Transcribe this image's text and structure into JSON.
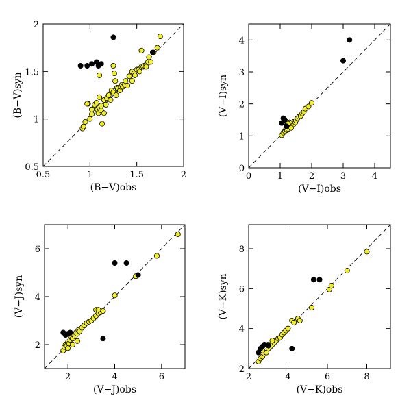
{
  "chart_data": [
    {
      "type": "scatter",
      "xlabel": "(B−V)obs",
      "ylabel": "(B−V)syn",
      "xlim": [
        0.5,
        2
      ],
      "ylim": [
        0.5,
        2
      ],
      "xticks": [
        0.5,
        1,
        1.5,
        2
      ],
      "yticks": [
        0.5,
        1,
        1.5,
        2
      ],
      "xticklabels": [
        "0.5",
        "1",
        "1.5",
        "2"
      ],
      "yticklabels": [
        "0.5",
        "1",
        "1.5",
        "2"
      ],
      "identity_line": true,
      "series": [
        {
          "color": "#f2ef2a",
          "x": [
            0.92,
            0.93,
            0.95,
            0.98,
            1.0,
            1.02,
            1.05,
            1.07,
            1.08,
            1.09,
            1.1,
            1.1,
            1.12,
            1.13,
            1.15,
            1.17,
            1.18,
            1.2,
            1.22,
            1.23,
            1.25,
            1.26,
            1.28,
            1.29,
            1.3,
            1.32,
            1.33,
            1.34,
            1.35,
            1.37,
            1.38,
            1.4,
            1.42,
            1.45,
            1.47,
            1.48,
            1.5,
            1.52,
            1.53,
            1.55,
            1.57,
            1.58,
            1.6,
            1.61,
            1.62,
            1.63,
            1.65,
            1.68,
            1.72,
            1.75,
            0.97,
            1.02,
            1.12,
            1.15,
            1.25,
            1.27,
            1.1,
            1.45,
            1.55,
            1.6
          ],
          "y": [
            0.9,
            0.92,
            0.97,
            1.16,
            1.0,
            1.05,
            1.15,
            1.17,
            1.1,
            1.06,
            1.12,
            1.46,
            1.09,
            0.95,
            1.2,
            1.15,
            1.22,
            1.25,
            1.2,
            1.3,
            1.28,
            1.48,
            1.25,
            1.33,
            1.32,
            1.3,
            1.34,
            1.36,
            1.34,
            1.36,
            1.4,
            1.35,
            1.45,
            1.5,
            1.48,
            1.46,
            1.52,
            1.52,
            1.5,
            1.55,
            1.55,
            1.56,
            1.57,
            1.58,
            1.6,
            1.65,
            1.6,
            1.7,
            1.75,
            1.87,
            1.16,
            1.1,
            1.14,
            1.06,
            1.56,
            1.4,
            1.23,
            1.4,
            1.72,
            1.55
          ]
        },
        {
          "color": "#000000",
          "x": [
            0.9,
            0.97,
            1.02,
            1.07,
            1.09,
            1.12,
            1.25,
            1.67
          ],
          "y": [
            1.56,
            1.56,
            1.58,
            1.6,
            1.56,
            1.58,
            1.86,
            1.7
          ]
        }
      ]
    },
    {
      "type": "scatter",
      "xlabel": "(V−I)obs",
      "ylabel": "(V−I)syn",
      "xlim": [
        0,
        4.5
      ],
      "ylim": [
        0,
        4.5
      ],
      "xticks": [
        0,
        1,
        2,
        3,
        4
      ],
      "yticks": [
        0,
        1,
        2,
        3,
        4
      ],
      "xticklabels": [
        "0",
        "1",
        "2",
        "3",
        "4"
      ],
      "yticklabels": [
        "0",
        "1",
        "2",
        "3",
        "4"
      ],
      "identity_line": true,
      "series": [
        {
          "color": "#f2ef2a",
          "x": [
            1.05,
            1.1,
            1.15,
            1.18,
            1.2,
            1.22,
            1.25,
            1.28,
            1.3,
            1.32,
            1.35,
            1.38,
            1.4,
            1.42,
            1.45,
            1.48,
            1.5,
            1.55,
            1.6,
            1.65,
            1.7,
            1.75,
            1.8,
            1.9,
            2.0,
            1.2,
            1.3,
            1.35,
            1.25
          ],
          "y": [
            1.02,
            1.1,
            1.15,
            1.2,
            1.25,
            1.18,
            1.22,
            1.3,
            1.28,
            1.35,
            1.32,
            1.38,
            1.4,
            1.36,
            1.45,
            1.42,
            1.48,
            1.55,
            1.6,
            1.62,
            1.7,
            1.75,
            1.85,
            1.92,
            2.03,
            1.32,
            1.42,
            1.25,
            1.38
          ]
        },
        {
          "color": "#000000",
          "x": [
            1.05,
            1.1,
            1.15,
            1.2,
            3.0,
            3.2
          ],
          "y": [
            1.4,
            1.55,
            1.5,
            1.3,
            3.35,
            4.0
          ]
        }
      ]
    },
    {
      "type": "scatter",
      "xlabel": "(V−J)obs",
      "ylabel": "(V−J)syn",
      "xlim": [
        1,
        7
      ],
      "ylim": [
        1,
        7
      ],
      "xticks": [
        2,
        4,
        6
      ],
      "yticks": [
        2,
        4,
        6
      ],
      "xticklabels": [
        "2",
        "4",
        "6"
      ],
      "yticklabels": [
        "2",
        "4",
        "6"
      ],
      "identity_line": true,
      "series": [
        {
          "color": "#f2ef2a",
          "x": [
            1.8,
            1.85,
            1.9,
            1.95,
            2.0,
            2.05,
            2.1,
            2.15,
            2.2,
            2.25,
            2.3,
            2.35,
            2.4,
            2.45,
            2.5,
            2.6,
            2.7,
            2.8,
            2.9,
            3.0,
            3.1,
            3.2,
            3.3,
            3.4,
            3.5,
            3.2,
            3.3,
            4.0,
            4.9,
            5.8,
            6.7,
            2.0,
            2.2,
            2.4
          ],
          "y": [
            1.75,
            1.9,
            2.0,
            1.95,
            2.1,
            2.05,
            2.2,
            2.3,
            2.25,
            2.4,
            2.35,
            2.5,
            2.45,
            2.6,
            2.55,
            2.7,
            2.8,
            2.9,
            2.95,
            3.0,
            3.1,
            3.2,
            3.3,
            3.35,
            3.4,
            3.45,
            3.45,
            4.05,
            4.85,
            5.7,
            6.6,
            1.85,
            2.0,
            2.15
          ]
        },
        {
          "color": "#000000",
          "x": [
            1.8,
            1.9,
            2.0,
            2.1,
            3.5,
            4.0,
            4.5,
            5.0
          ],
          "y": [
            2.5,
            2.4,
            2.45,
            2.5,
            2.25,
            5.4,
            5.4,
            4.9
          ]
        }
      ]
    },
    {
      "type": "scatter",
      "xlabel": "(V−K)obs",
      "ylabel": "(V−K)syn",
      "xlim": [
        2,
        9.2
      ],
      "ylim": [
        2,
        9.2
      ],
      "xticks": [
        2,
        4,
        6,
        8
      ],
      "yticks": [
        2,
        4,
        6,
        8
      ],
      "xticklabels": [
        "2",
        "4",
        "6",
        "8"
      ],
      "yticklabels": [
        "2",
        "4",
        "6",
        "8"
      ],
      "identity_line": true,
      "series": [
        {
          "color": "#f2ef2a",
          "x": [
            2.5,
            2.6,
            2.7,
            2.8,
            2.9,
            3.0,
            3.1,
            3.2,
            3.3,
            3.4,
            3.5,
            3.6,
            3.7,
            3.8,
            3.9,
            4.0,
            4.2,
            4.3,
            4.5,
            4.6,
            5.2,
            6.1,
            6.2,
            7.0,
            8.0,
            2.7,
            3.0,
            3.2
          ],
          "y": [
            2.35,
            2.5,
            2.6,
            2.75,
            2.8,
            3.0,
            3.1,
            3.2,
            3.3,
            3.4,
            3.5,
            3.55,
            3.7,
            3.8,
            3.9,
            4.0,
            4.4,
            4.3,
            4.5,
            4.4,
            5.05,
            5.95,
            6.15,
            6.9,
            7.85,
            2.9,
            3.2,
            3.4
          ]
        },
        {
          "color": "#000000",
          "x": [
            2.5,
            2.6,
            2.7,
            2.8,
            3.0,
            4.2,
            5.3,
            5.6
          ],
          "y": [
            2.8,
            3.0,
            3.1,
            3.2,
            3.15,
            3.0,
            6.45,
            6.45
          ]
        }
      ]
    }
  ]
}
